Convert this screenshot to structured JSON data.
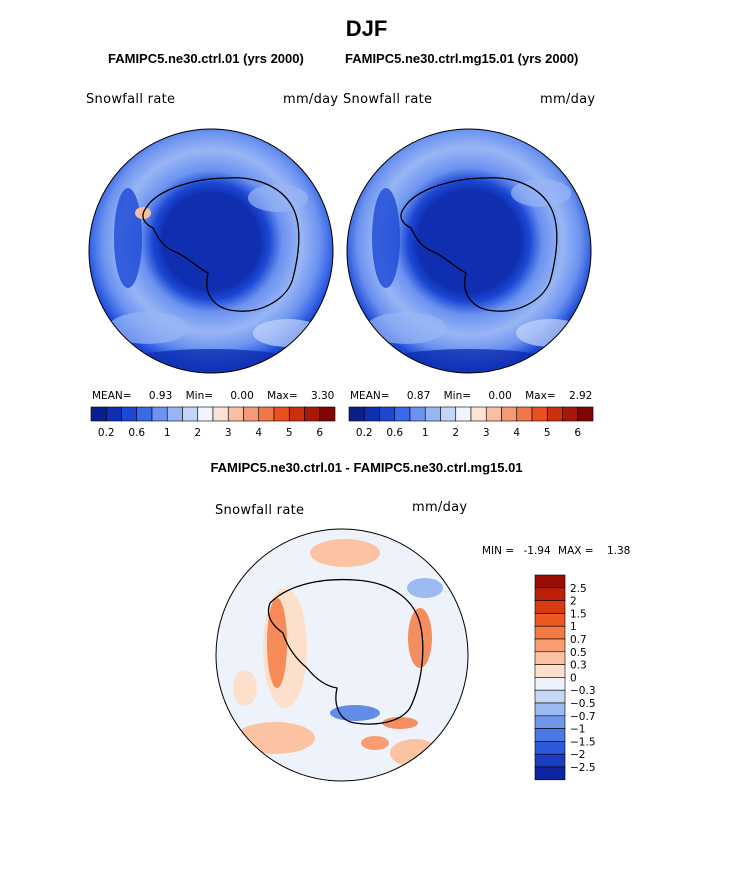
{
  "figure": {
    "title": "DJF",
    "variable": "Snowfall rate",
    "units": "mm/day"
  },
  "panels": [
    {
      "title": "FAMIPC5.ne30.ctrl.01 (yrs 2000)",
      "mean_label": "MEAN=",
      "mean": "0.93",
      "min_label": "Min=",
      "min": "0.00",
      "max_label": "Max=",
      "max": "3.30"
    },
    {
      "title": "FAMIPC5.ne30.ctrl.mg15.01 (yrs 2000)",
      "mean_label": "MEAN=",
      "mean": "0.87",
      "min_label": "Min=",
      "min": "0.00",
      "max_label": "Max=",
      "max": "2.92"
    }
  ],
  "top_colorbar": {
    "colors": [
      "#0a1f8c",
      "#0f2eb0",
      "#1c48d4",
      "#3b6ae8",
      "#6b92f0",
      "#98b6f5",
      "#c3d6fa",
      "#f0f4fd",
      "#fde3d6",
      "#f8bfa3",
      "#f59a76",
      "#f07848",
      "#e8501f",
      "#cc3010",
      "#a8180a",
      "#7e0606"
    ],
    "labels": [
      "0.2",
      "0.6",
      "1",
      "2",
      "3",
      "4",
      "5",
      "6"
    ]
  },
  "diff": {
    "title": "FAMIPC5.ne30.ctrl.01 - FAMIPC5.ne30.ctrl.mg15.01",
    "min_label": "MIN =",
    "min": "-1.94",
    "max_label": "MAX =",
    "max": "1.38",
    "colorbar": {
      "colors": [
        "#9a0e06",
        "#bc1f0a",
        "#d83a12",
        "#ec5a22",
        "#f47a44",
        "#f89d70",
        "#fbc3a1",
        "#fde0cc",
        "#eef3fb",
        "#c6d8f5",
        "#9bbaf0",
        "#6e97ea",
        "#4a78e4",
        "#2d5ad8",
        "#1a3cc2",
        "#0e24a0"
      ],
      "labels": [
        "2.5",
        "2",
        "1.5",
        "1",
        "0.7",
        "0.5",
        "0.3",
        "0",
        "−0.3",
        "−0.5",
        "−0.7",
        "−1",
        "−1.5",
        "−2",
        "−2.5"
      ]
    }
  }
}
